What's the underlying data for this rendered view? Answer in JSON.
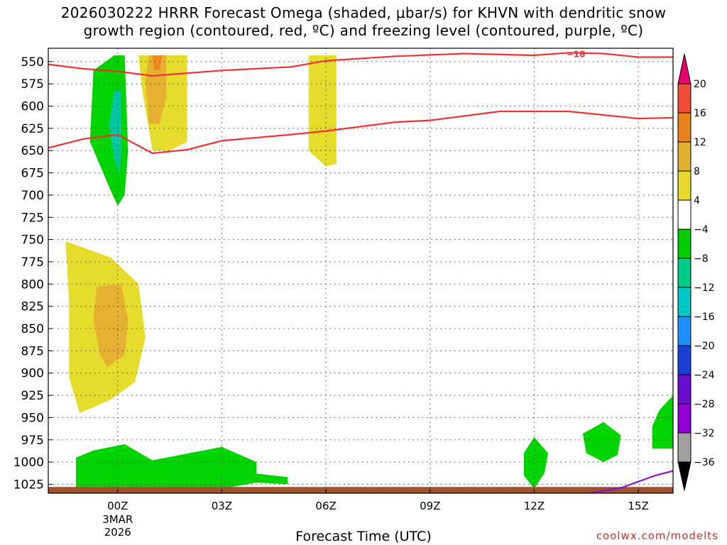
{
  "header": {
    "title_line1": "2026030222 HRRR Forecast Omega (shaded, μbar/s) for KHVN with dendritic snow",
    "title_line2": "growth region (contoured, red, ºC) and freezing level (contoured, purple, ºC)"
  },
  "credit": "coolwx.com/modelts",
  "chart_data": {
    "type": "heatmap",
    "xlabel": "Forecast Time (UTC)",
    "x_ticks": [
      "00Z",
      "03Z",
      "06Z",
      "09Z",
      "12Z",
      "15Z"
    ],
    "x_tick_hours": [
      0,
      3,
      6,
      9,
      12,
      15
    ],
    "x_date_label": [
      "3MAR",
      "2026"
    ],
    "xlim_hours": [
      -2,
      16
    ],
    "ylabel": "",
    "y_ticks": [
      550,
      575,
      600,
      625,
      650,
      675,
      700,
      725,
      750,
      775,
      800,
      825,
      850,
      875,
      900,
      925,
      950,
      975,
      1000,
      1025
    ],
    "ylim_mb": [
      535,
      1035
    ],
    "grid": true,
    "colorbar": {
      "levels": [
        -36,
        -32,
        -28,
        -24,
        -20,
        -16,
        -12,
        -8,
        -4,
        4,
        8,
        12,
        16,
        20
      ],
      "colors": [
        "#000000",
        "#a0a0a0",
        "#9400d3",
        "#6a0dcc",
        "#1a3fd6",
        "#1e90ff",
        "#00c8c8",
        "#00cc8a",
        "#00cc00",
        "#ffffff",
        "#e6d82c",
        "#e0b030",
        "#e8821c",
        "#f04a3a",
        "#e8006e"
      ]
    },
    "dgz_contour_label": "−18",
    "omega_regions": [
      {
        "color": "#00d400",
        "range": "-8 to -4",
        "poly": [
          [
            -0.1,
            543
          ],
          [
            0.2,
            543
          ],
          [
            0.3,
            650
          ],
          [
            0.2,
            700
          ],
          [
            0.0,
            712
          ],
          [
            -0.2,
            695
          ],
          [
            -0.8,
            640
          ],
          [
            -0.7,
            560
          ]
        ]
      },
      {
        "color": "#00c8a0",
        "range": "-12 to -8",
        "poly": [
          [
            -0.1,
            583
          ],
          [
            0.1,
            583
          ],
          [
            0.1,
            650
          ],
          [
            0.05,
            676
          ],
          [
            -0.1,
            660
          ],
          [
            -0.25,
            620
          ]
        ]
      },
      {
        "color": "#e6dc2c",
        "range": "4 to 8",
        "poly": [
          [
            1.0,
            543
          ],
          [
            2.0,
            543
          ],
          [
            2.0,
            640
          ],
          [
            1.5,
            650
          ],
          [
            1.0,
            650
          ],
          [
            0.7,
            580
          ],
          [
            0.6,
            543
          ]
        ]
      },
      {
        "color": "#e6b030",
        "range": "8 to 12",
        "poly": [
          [
            0.9,
            543
          ],
          [
            1.4,
            543
          ],
          [
            1.4,
            590
          ],
          [
            1.2,
            620
          ],
          [
            0.9,
            620
          ],
          [
            0.8,
            570
          ]
        ]
      },
      {
        "color": "#ee8a1e",
        "range": "12 to 16",
        "poly": [
          [
            1.0,
            543
          ],
          [
            1.3,
            543
          ],
          [
            1.2,
            560
          ],
          [
            1.05,
            560
          ]
        ]
      },
      {
        "color": "#e6dc2c",
        "range": "4 to 8",
        "poly": [
          [
            5.5,
            543
          ],
          [
            6.3,
            543
          ],
          [
            6.3,
            665
          ],
          [
            6.0,
            668
          ],
          [
            5.5,
            650
          ]
        ]
      },
      {
        "color": "#e6dc2c",
        "range": "4 to 8",
        "poly": [
          [
            -1.5,
            752
          ],
          [
            -0.2,
            770
          ],
          [
            0.6,
            800
          ],
          [
            0.8,
            860
          ],
          [
            0.5,
            910
          ],
          [
            -0.2,
            930
          ],
          [
            -1.1,
            945
          ],
          [
            -1.4,
            905
          ],
          [
            -1.4,
            820
          ]
        ]
      },
      {
        "color": "#e6b030",
        "range": "8 to 12",
        "poly": [
          [
            -0.6,
            803
          ],
          [
            0.1,
            800
          ],
          [
            0.3,
            840
          ],
          [
            0.2,
            880
          ],
          [
            -0.3,
            893
          ],
          [
            -0.5,
            880
          ],
          [
            -0.7,
            840
          ]
        ]
      },
      {
        "color": "#00d400",
        "range": "-8 to -4",
        "poly": [
          [
            -1.2,
            995
          ],
          [
            -0.7,
            987
          ],
          [
            0.2,
            980
          ],
          [
            1.0,
            998
          ],
          [
            3.0,
            983
          ],
          [
            4.0,
            1000
          ],
          [
            4.0,
            1013
          ],
          [
            4.9,
            1017
          ],
          [
            4.9,
            1025
          ],
          [
            4.0,
            1023
          ],
          [
            3.0,
            1030
          ],
          [
            1.5,
            1030
          ],
          [
            -1.2,
            1030
          ]
        ]
      },
      {
        "color": "#00d400",
        "range": "-8 to -4",
        "poly": [
          [
            12.0,
            972
          ],
          [
            12.4,
            990
          ],
          [
            12.3,
            1012
          ],
          [
            12.0,
            1030
          ],
          [
            11.7,
            1015
          ],
          [
            11.7,
            990
          ]
        ]
      },
      {
        "color": "#00d400",
        "range": "-8 to -4",
        "poly": [
          [
            13.4,
            968
          ],
          [
            14.0,
            955
          ],
          [
            14.5,
            970
          ],
          [
            14.4,
            992
          ],
          [
            14.0,
            1000
          ],
          [
            13.5,
            990
          ]
        ]
      },
      {
        "color": "#00d400",
        "range": "-8 to -4",
        "poly": [
          [
            16.0,
            925
          ],
          [
            16.0,
            985
          ],
          [
            15.4,
            985
          ],
          [
            15.4,
            960
          ],
          [
            15.6,
            942
          ]
        ]
      }
    ],
    "dgz_contours": [
      {
        "name": "-18",
        "points": [
          [
            -2,
            553
          ],
          [
            -1,
            558
          ],
          [
            0,
            561
          ],
          [
            1,
            566
          ],
          [
            3,
            560
          ],
          [
            5,
            556
          ],
          [
            6,
            549
          ],
          [
            8,
            544
          ],
          [
            10,
            541
          ],
          [
            12,
            543
          ],
          [
            13,
            540
          ],
          [
            14,
            541
          ],
          [
            15,
            545
          ],
          [
            16,
            545
          ]
        ]
      },
      {
        "name": "-12",
        "points": [
          [
            -2,
            647
          ],
          [
            -1,
            637
          ],
          [
            0,
            632
          ],
          [
            1,
            653
          ],
          [
            2,
            649
          ],
          [
            3,
            639
          ],
          [
            5,
            632
          ],
          [
            6,
            628
          ],
          [
            8,
            618
          ],
          [
            9,
            616
          ],
          [
            11,
            606
          ],
          [
            13,
            606
          ],
          [
            15,
            614
          ],
          [
            16,
            613
          ]
        ]
      }
    ],
    "freezing_level": {
      "name": "0",
      "points": [
        [
          13.6,
          1035
        ],
        [
          14.5,
          1029
        ],
        [
          15.5,
          1015
        ],
        [
          16,
          1010
        ]
      ]
    },
    "ground": {
      "color": "#a0522d",
      "pressure_mb": 1028
    }
  }
}
